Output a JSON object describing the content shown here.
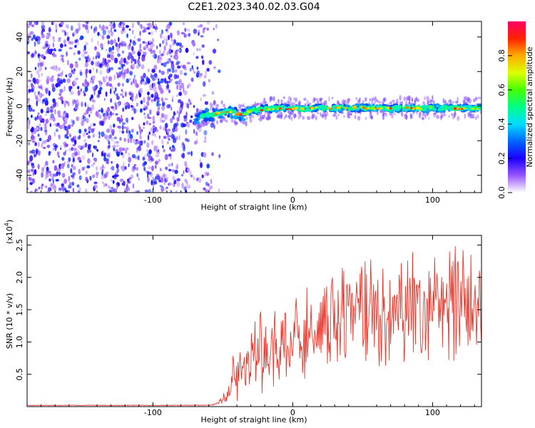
{
  "title": "C2E1.2023.340.02.03.G04",
  "chart_data": [
    {
      "type": "heatmap",
      "xlabel": "Height of straight line (km)",
      "ylabel": "Frequency (Hz)",
      "xlim": [
        -190,
        135
      ],
      "ylim": [
        -50,
        49
      ],
      "xticks": [
        -100,
        0,
        100
      ],
      "xtick_labels": [
        "-100",
        "0",
        "100"
      ],
      "yticks": [
        -40,
        -20,
        0,
        20,
        40
      ],
      "ytick_labels": [
        "-40",
        "-20",
        "0",
        "20",
        "40"
      ],
      "noise_region_x": [
        -190,
        -60
      ],
      "signal_region_x": [
        -70,
        135
      ],
      "colorbar": {
        "label": "Normalized spectral amplitude",
        "range": [
          0,
          1
        ],
        "ticks": [
          "0.0",
          "0.2",
          "0.4",
          "0.6",
          "0.8"
        ],
        "colors": [
          "#ffffff",
          "#9955ff",
          "#1a00ff",
          "#0066ff",
          "#00ddff",
          "#00ff88",
          "#44ff00",
          "#ddff00",
          "#ffaa00",
          "#ff2200",
          "#ff0066"
        ]
      },
      "ridge": {
        "x": [
          -70,
          -65,
          -60,
          -55,
          -50,
          -45,
          -40,
          -35,
          -30,
          -25,
          -20,
          -15,
          -10,
          -5,
          0,
          10,
          20,
          30,
          40,
          50,
          60,
          70,
          80,
          90,
          100,
          110,
          120,
          130,
          135
        ],
        "y": [
          -7,
          -6,
          -5,
          -4.5,
          -3.5,
          -3,
          -4.5,
          -5,
          -3,
          -2,
          -1.5,
          -1.5,
          -1,
          -1,
          -1.5,
          -1.5,
          -1,
          -1.2,
          -1,
          -1.1,
          -1,
          -1.3,
          -1,
          -1.4,
          -1,
          -1.2,
          -1.3,
          -1.1,
          -1
        ]
      },
      "grid": false
    },
    {
      "type": "line",
      "xlabel": "Height of straight line (km)",
      "ylabel": "SNR (10 * v/v)",
      "scale_label": "(x10",
      "scale_exp": "4",
      "scale_close": ")",
      "xlim": [
        -190,
        135
      ],
      "ylim": [
        0,
        2.65
      ],
      "xticks": [
        -100,
        0,
        100
      ],
      "xtick_labels": [
        "-100",
        "0",
        "100"
      ],
      "yticks": [
        0.5,
        1.0,
        1.5,
        2.0,
        2.5
      ],
      "ytick_labels": [
        "0.5",
        "1.0",
        "1.5",
        "2.0",
        "2.5"
      ],
      "color": "#e8372b",
      "series": [
        {
          "x": [
            -190,
            -60,
            -55,
            -50,
            -45,
            -40,
            -35,
            -30,
            -25,
            -20,
            -15,
            -10,
            -5,
            0,
            10,
            20,
            30,
            40,
            50,
            60,
            70,
            80,
            90,
            100,
            110,
            120,
            130,
            135
          ],
          "values": [
            0.02,
            0.02,
            0.04,
            0.1,
            0.25,
            0.45,
            0.7,
            0.7,
            0.85,
            0.85,
            0.9,
            0.95,
            1.0,
            1.15,
            1.2,
            1.3,
            1.4,
            1.45,
            1.5,
            1.5,
            1.5,
            1.55,
            1.5,
            1.6,
            1.55,
            1.55,
            1.45,
            1.45
          ],
          "spread": [
            0,
            0,
            0.03,
            0.1,
            0.35,
            0.55,
            0.55,
            0.6,
            0.6,
            0.65,
            0.65,
            0.7,
            0.7,
            0.7,
            0.75,
            0.75,
            0.8,
            0.9,
            0.85,
            0.85,
            0.8,
            0.8,
            0.8,
            0.85,
            0.8,
            0.8,
            0.75,
            0.75
          ]
        }
      ],
      "grid": false
    }
  ]
}
